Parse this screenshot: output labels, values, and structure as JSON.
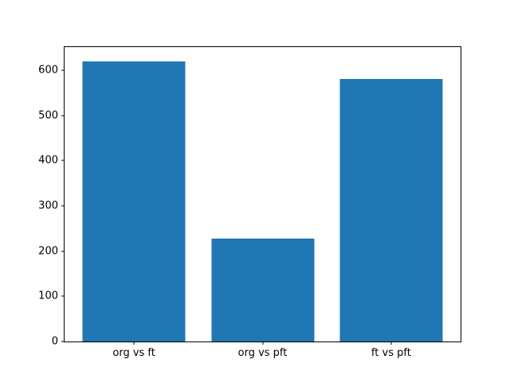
{
  "chart_data": {
    "type": "bar",
    "title": "",
    "xlabel": "",
    "ylabel": "",
    "categories": [
      "org vs ft",
      "org vs pft",
      "ft vs pft"
    ],
    "values": [
      620,
      228,
      580
    ],
    "bar_color": "#1f77b4",
    "ylim": [
      0,
      651
    ],
    "yticks": [
      0,
      100,
      200,
      300,
      400,
      500,
      600
    ],
    "grid": "off",
    "legend": "none",
    "bar_width_fraction": 0.8,
    "x_range_units": [
      -0.54,
      2.54
    ]
  }
}
